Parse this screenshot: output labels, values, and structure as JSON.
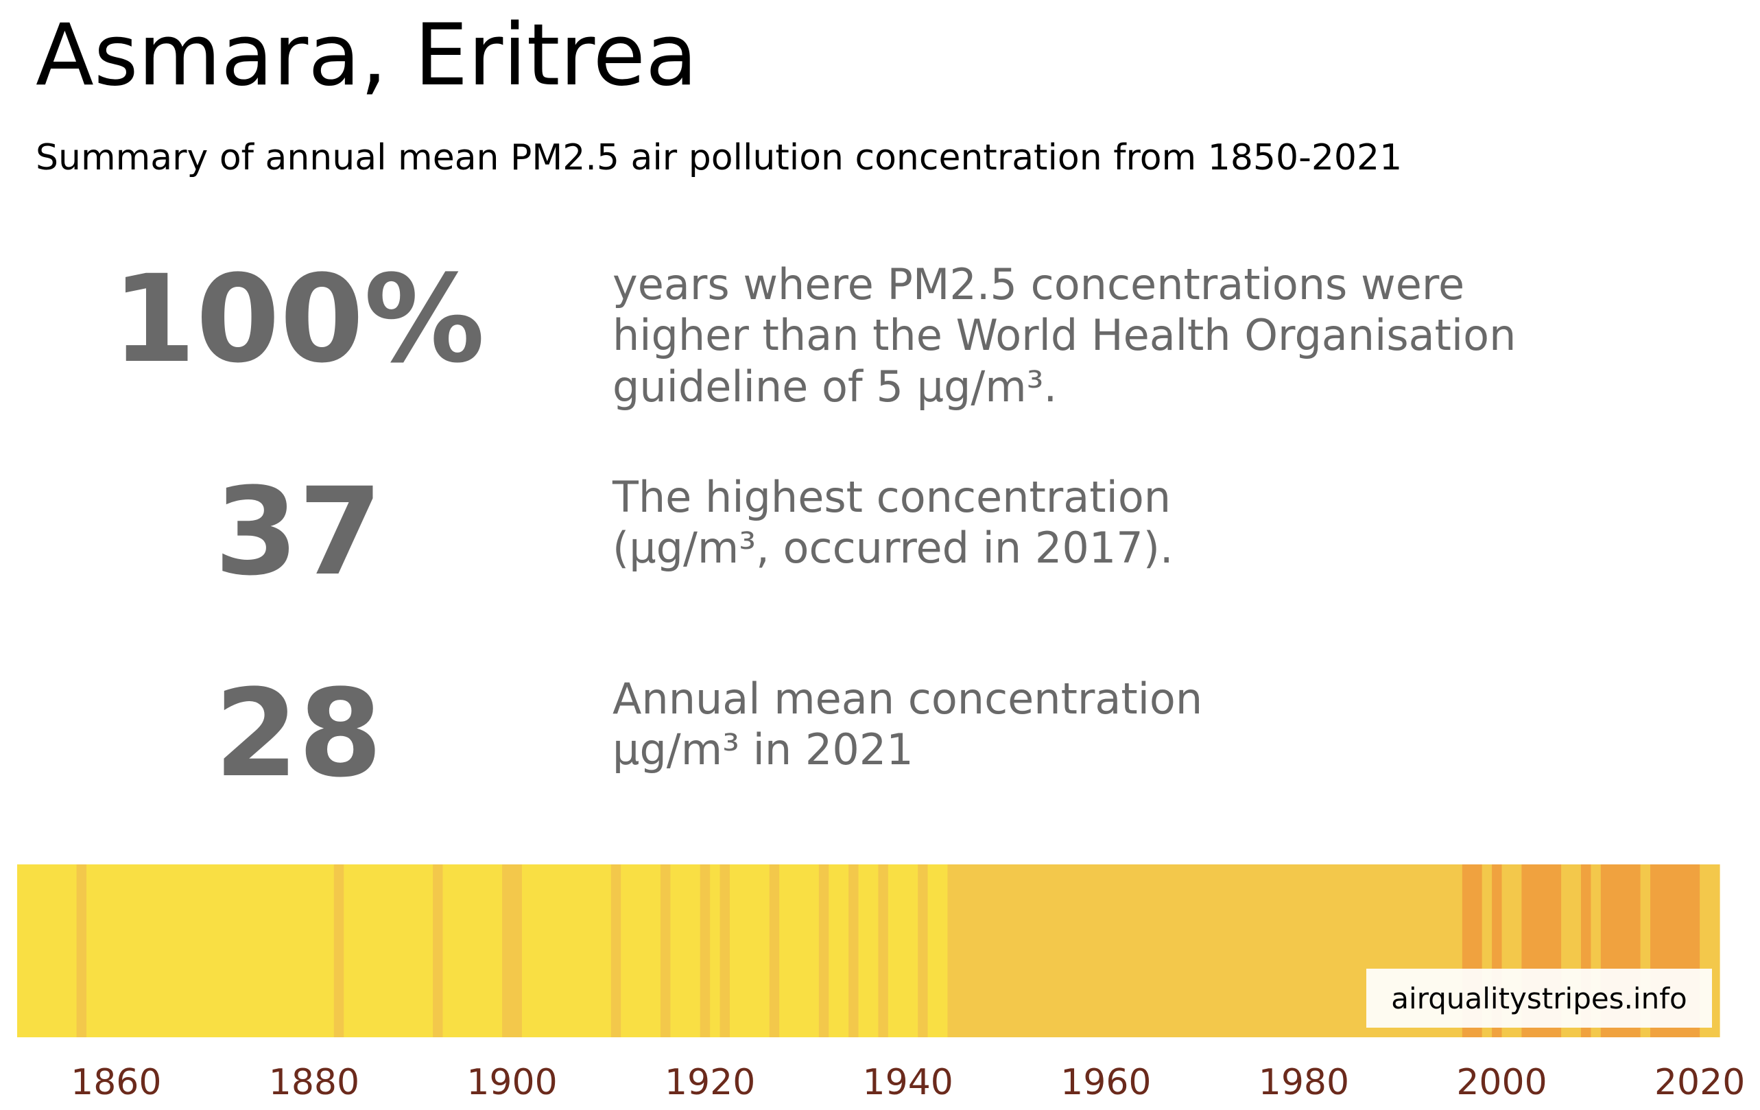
{
  "title": "Asmara, Eritrea",
  "subtitle": "Summary of annual mean PM2.5 air pollution concentration from 1850-2021",
  "stats": [
    {
      "value": "100%",
      "lines": [
        "years where PM2.5 concentrations were",
        "higher than the World Health Organisation",
        "guideline of 5 µg/m³."
      ]
    },
    {
      "value": "37",
      "lines": [
        "The highest concentration",
        "(µg/m³, occurred in 2017)."
      ]
    },
    {
      "value": "28",
      "lines": [
        "Annual mean concentration",
        "µg/m³ in 2021"
      ]
    }
  ],
  "watermark": "airqualitystripes.info",
  "chart_data": {
    "type": "heatmap",
    "x_range": [
      1850,
      2022
    ],
    "tick_labels": [
      "1860",
      "1880",
      "1900",
      "1920",
      "1940",
      "1960",
      "1980",
      "2000",
      "2020"
    ],
    "colors": {
      "light_yellow": "#f9df44",
      "yellow_orange": "#f3c84b",
      "orange": "#f0a23f",
      "tick_label": "#6b2a1c"
    },
    "stripe_bands": [
      {
        "from": 1850,
        "to": 1856,
        "color": "light_yellow"
      },
      {
        "from": 1856,
        "to": 1857,
        "color": "yellow_orange"
      },
      {
        "from": 1857,
        "to": 1882,
        "color": "light_yellow"
      },
      {
        "from": 1882,
        "to": 1883,
        "color": "yellow_orange"
      },
      {
        "from": 1883,
        "to": 1892,
        "color": "light_yellow"
      },
      {
        "from": 1892,
        "to": 1893,
        "color": "yellow_orange"
      },
      {
        "from": 1893,
        "to": 1899,
        "color": "light_yellow"
      },
      {
        "from": 1899,
        "to": 1901,
        "color": "yellow_orange"
      },
      {
        "from": 1901,
        "to": 1910,
        "color": "light_yellow"
      },
      {
        "from": 1910,
        "to": 1911,
        "color": "yellow_orange"
      },
      {
        "from": 1911,
        "to": 1915,
        "color": "light_yellow"
      },
      {
        "from": 1915,
        "to": 1916,
        "color": "yellow_orange"
      },
      {
        "from": 1916,
        "to": 1919,
        "color": "light_yellow"
      },
      {
        "from": 1919,
        "to": 1920,
        "color": "yellow_orange"
      },
      {
        "from": 1920,
        "to": 1921,
        "color": "light_yellow"
      },
      {
        "from": 1921,
        "to": 1922,
        "color": "yellow_orange"
      },
      {
        "from": 1922,
        "to": 1926,
        "color": "light_yellow"
      },
      {
        "from": 1926,
        "to": 1927,
        "color": "yellow_orange"
      },
      {
        "from": 1927,
        "to": 1931,
        "color": "light_yellow"
      },
      {
        "from": 1931,
        "to": 1932,
        "color": "yellow_orange"
      },
      {
        "from": 1932,
        "to": 1934,
        "color": "light_yellow"
      },
      {
        "from": 1934,
        "to": 1935,
        "color": "yellow_orange"
      },
      {
        "from": 1935,
        "to": 1937,
        "color": "light_yellow"
      },
      {
        "from": 1937,
        "to": 1938,
        "color": "yellow_orange"
      },
      {
        "from": 1938,
        "to": 1941,
        "color": "light_yellow"
      },
      {
        "from": 1941,
        "to": 1942,
        "color": "yellow_orange"
      },
      {
        "from": 1942,
        "to": 1944,
        "color": "light_yellow"
      },
      {
        "from": 1944,
        "to": 1996,
        "color": "yellow_orange"
      },
      {
        "from": 1996,
        "to": 1998,
        "color": "orange"
      },
      {
        "from": 1998,
        "to": 1999,
        "color": "yellow_orange"
      },
      {
        "from": 1999,
        "to": 2000,
        "color": "orange"
      },
      {
        "from": 2000,
        "to": 2002,
        "color": "yellow_orange"
      },
      {
        "from": 2002,
        "to": 2006,
        "color": "orange"
      },
      {
        "from": 2006,
        "to": 2008,
        "color": "yellow_orange"
      },
      {
        "from": 2008,
        "to": 2009,
        "color": "orange"
      },
      {
        "from": 2009,
        "to": 2010,
        "color": "yellow_orange"
      },
      {
        "from": 2010,
        "to": 2014,
        "color": "orange"
      },
      {
        "from": 2014,
        "to": 2015,
        "color": "yellow_orange"
      },
      {
        "from": 2015,
        "to": 2020,
        "color": "orange"
      },
      {
        "from": 2020,
        "to": 2022,
        "color": "yellow_orange"
      }
    ]
  }
}
